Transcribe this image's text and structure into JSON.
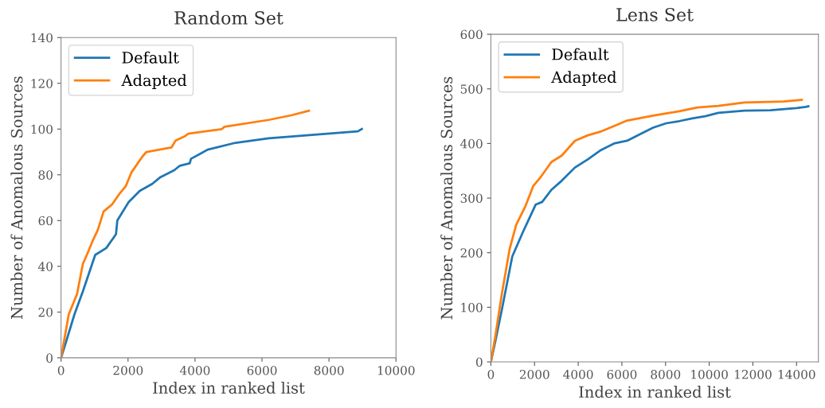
{
  "chart_data": [
    {
      "type": "line",
      "title": "Random Set",
      "xlabel": "Index in ranked list",
      "ylabel": "Number of Anomalous Sources",
      "xlim": [
        0,
        10000
      ],
      "ylim": [
        0,
        140
      ],
      "xticks": [
        0,
        2000,
        4000,
        6000,
        8000,
        10000
      ],
      "yticks": [
        0,
        20,
        40,
        60,
        80,
        100,
        120,
        140
      ],
      "grid": false,
      "legend": "top left",
      "series": [
        {
          "name": "Default",
          "color": "#1f77b4",
          "x": [
            0,
            150,
            400,
            650,
            1020,
            1350,
            1640,
            1680,
            2015,
            2350,
            2720,
            2970,
            3380,
            3550,
            3840,
            3880,
            4380,
            5210,
            6200,
            8860,
            8980
          ],
          "values": [
            0,
            7,
            19,
            29,
            45,
            48,
            54,
            60,
            68,
            73,
            76,
            79,
            82,
            84,
            85,
            87,
            91,
            94,
            96,
            99,
            100
          ]
        },
        {
          "name": "Adapted",
          "color": "#ff7f0e",
          "x": [
            0,
            230,
            480,
            650,
            770,
            940,
            1100,
            1270,
            1520,
            1760,
            1930,
            2100,
            2430,
            2550,
            3300,
            3420,
            3710,
            3800,
            4800,
            4880,
            6200,
            6870,
            7400
          ],
          "values": [
            0,
            19,
            28,
            41,
            45,
            51,
            56,
            64,
            67,
            72,
            75,
            81,
            88,
            90,
            92,
            95,
            97,
            98,
            100,
            101,
            104,
            106,
            108
          ]
        }
      ]
    },
    {
      "type": "line",
      "title": "Lens Set",
      "xlabel": "Index in ranked list",
      "ylabel": "Number of Anomalous Sources",
      "xlim": [
        0,
        15000
      ],
      "ylim": [
        0,
        600
      ],
      "xticks": [
        0,
        2000,
        4000,
        6000,
        8000,
        10000,
        12000,
        14000
      ],
      "yticks": [
        0,
        100,
        200,
        300,
        400,
        500,
        600
      ],
      "grid": false,
      "legend": "top left",
      "series": [
        {
          "name": "Default",
          "color": "#1f77b4",
          "x": [
            0,
            200,
            500,
            980,
            1460,
            2050,
            2350,
            2770,
            3250,
            3850,
            4440,
            5040,
            5640,
            6240,
            6830,
            7430,
            8030,
            8630,
            9220,
            9820,
            10420,
            11610,
            12800,
            14000,
            14420,
            14540
          ],
          "values": [
            0,
            37,
            95,
            193,
            237,
            288,
            293,
            315,
            332,
            356,
            371,
            388,
            400,
            405,
            417,
            429,
            437,
            441,
            446,
            450,
            456,
            460,
            461,
            465,
            467,
            468
          ]
        },
        {
          "name": "Adapted",
          "color": "#ff7f0e",
          "x": [
            0,
            200,
            500,
            860,
            1160,
            1580,
            1940,
            2290,
            2770,
            3250,
            3850,
            4440,
            5040,
            5640,
            6240,
            7430,
            8630,
            9460,
            10420,
            11610,
            13400,
            14240
          ],
          "values": [
            0,
            46,
            124,
            207,
            251,
            285,
            322,
            339,
            366,
            378,
            405,
            415,
            422,
            432,
            442,
            451,
            459,
            466,
            469,
            475,
            477,
            480
          ]
        }
      ]
    }
  ]
}
